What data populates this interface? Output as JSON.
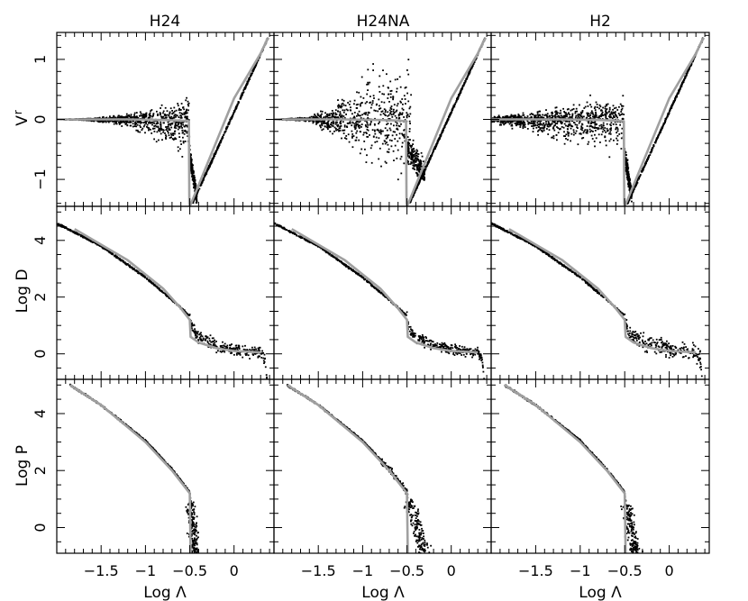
{
  "figure": {
    "columns": [
      "H24",
      "H24NA",
      "H2"
    ],
    "xlabel": "Log Λ",
    "x_ticks": [
      -1.5,
      -1,
      -0.5,
      0
    ],
    "x_tick_labels": [
      "−1.5",
      "−1",
      "−0.5",
      "0"
    ],
    "rows": [
      {
        "ylabel": "V",
        "ylabel_sub": "r",
        "y_ticks": [
          -1,
          0,
          1
        ],
        "y_tick_labels": [
          "−1",
          "0",
          "1"
        ]
      },
      {
        "ylabel": "Log D",
        "y_ticks": [
          0,
          2,
          4
        ],
        "y_tick_labels": [
          "0",
          "2",
          "4"
        ]
      },
      {
        "ylabel": "Log P",
        "y_ticks": [
          0,
          2,
          4
        ],
        "y_tick_labels": [
          "0",
          "2",
          "4"
        ]
      }
    ],
    "colors": {
      "points": "#000000",
      "model_line": "#a0a0a0",
      "frame": "#000000"
    }
  },
  "chart_data": [
    {
      "type": "scatter",
      "row": 0,
      "panel": "H24",
      "xlim": [
        -2.0,
        0.45
      ],
      "ylim": [
        -1.45,
        1.45
      ],
      "model_curve": {
        "x": [
          -2.0,
          -1.2,
          -0.8,
          -0.6,
          -0.51,
          -0.505,
          -0.5,
          -0.47,
          0.0,
          0.3,
          0.37,
          0.39
        ],
        "y": [
          0.0,
          0.0,
          -0.01,
          -0.02,
          -0.03,
          -1.4,
          -1.45,
          -1.35,
          0.35,
          1.1,
          1.32,
          1.36
        ]
      },
      "branches": [
        {
          "x_from": -2.0,
          "x_to": -0.5,
          "y_center": 0.0,
          "scatter": [
            0.0,
            0.02,
            0.1,
            0.3,
            0.55
          ],
          "skew": "down"
        },
        {
          "x_from": -0.5,
          "x_to": -0.42,
          "y_from": -0.6,
          "y_to": -1.3,
          "scatter": 0.15
        },
        {
          "x_from": -0.47,
          "x_to": 0.38,
          "y_from": -1.4,
          "y_to": 1.35,
          "scatter": 0.01
        }
      ]
    },
    {
      "type": "scatter",
      "row": 0,
      "panel": "H24NA",
      "xlim": [
        -2.0,
        0.45
      ],
      "ylim": [
        -1.45,
        1.45
      ],
      "model_curve": {
        "x": [
          -2.0,
          -1.2,
          -0.8,
          -0.6,
          -0.51,
          -0.505,
          -0.5,
          -0.47,
          0.0,
          0.3,
          0.37,
          0.39
        ],
        "y": [
          0.0,
          0.0,
          -0.01,
          -0.02,
          -0.03,
          -1.4,
          -1.45,
          -1.35,
          0.35,
          1.1,
          1.32,
          1.36
        ]
      },
      "branches": [
        {
          "x_from": -2.0,
          "x_to": -0.45,
          "y_center": 0.0,
          "scatter": [
            0.0,
            0.03,
            0.3,
            0.7,
            0.9
          ],
          "skew": "none"
        },
        {
          "x_from": -0.5,
          "x_to": -0.3,
          "y_from": -0.5,
          "y_to": -0.9,
          "scatter": 0.2
        },
        {
          "x_from": -0.47,
          "x_to": 0.38,
          "y_from": -1.4,
          "y_to": 1.35,
          "scatter": 0.01
        }
      ]
    },
    {
      "type": "scatter",
      "row": 0,
      "panel": "H2",
      "xlim": [
        -2.0,
        0.45
      ],
      "ylim": [
        -1.45,
        1.45
      ],
      "model_curve": {
        "x": [
          -2.0,
          -1.2,
          -0.8,
          -0.6,
          -0.51,
          -0.505,
          -0.5,
          -0.47,
          0.0,
          0.3,
          0.37,
          0.39
        ],
        "y": [
          0.0,
          0.0,
          -0.01,
          -0.02,
          -0.03,
          -1.4,
          -1.45,
          -1.35,
          0.35,
          1.1,
          1.32,
          1.36
        ]
      },
      "branches": [
        {
          "x_from": -2.0,
          "x_to": -0.5,
          "y_center": 0.0,
          "scatter": [
            0.05,
            0.15,
            0.3,
            0.45,
            0.6
          ],
          "skew": "down"
        },
        {
          "x_from": -0.5,
          "x_to": -0.42,
          "y_from": -0.6,
          "y_to": -1.3,
          "scatter": 0.15
        },
        {
          "x_from": -0.47,
          "x_to": 0.38,
          "y_from": -1.4,
          "y_to": 1.35,
          "scatter": 0.01
        }
      ]
    },
    {
      "type": "scatter",
      "row": 1,
      "panel": "H24",
      "xlim": [
        -2.0,
        0.45
      ],
      "ylim": [
        -0.9,
        5.2
      ],
      "model_curve": {
        "x": [
          -1.8,
          -1.2,
          -0.8,
          -0.6,
          -0.5,
          -0.49,
          -0.4,
          -0.2,
          0.0,
          0.3
        ],
        "y": [
          4.4,
          3.3,
          2.3,
          1.6,
          1.2,
          0.6,
          0.4,
          0.2,
          0.1,
          0.05
        ]
      },
      "sim_curve": {
        "x": [
          -2.0,
          -1.5,
          -1.0,
          -0.7,
          -0.5,
          -0.49,
          -0.4,
          -0.2,
          0.0,
          0.3,
          0.35,
          0.37
        ],
        "y": [
          4.6,
          3.8,
          2.7,
          1.9,
          1.35,
          0.95,
          0.6,
          0.3,
          0.15,
          0.05,
          -0.2,
          -0.9
        ]
      },
      "sim_scatter": {
        "x_from": -0.5,
        "x_to": 0.35,
        "amount": 0.22
      }
    },
    {
      "type": "scatter",
      "row": 1,
      "panel": "H24NA",
      "xlim": [
        -2.0,
        0.45
      ],
      "ylim": [
        -0.9,
        5.2
      ],
      "model_curve": {
        "x": [
          -1.8,
          -1.2,
          -0.8,
          -0.6,
          -0.5,
          -0.49,
          -0.4,
          -0.2,
          0.0,
          0.3
        ],
        "y": [
          4.4,
          3.3,
          2.3,
          1.6,
          1.2,
          0.6,
          0.4,
          0.2,
          0.1,
          0.05
        ]
      },
      "sim_curve": {
        "x": [
          -2.0,
          -1.5,
          -1.0,
          -0.7,
          -0.5,
          -0.49,
          -0.4,
          -0.2,
          0.0,
          0.3,
          0.35,
          0.37
        ],
        "y": [
          4.6,
          3.8,
          2.7,
          1.9,
          1.35,
          0.95,
          0.6,
          0.3,
          0.15,
          0.05,
          -0.2,
          -0.9
        ]
      },
      "sim_scatter": {
        "x_from": -0.5,
        "x_to": 0.35,
        "amount": 0.18
      }
    },
    {
      "type": "scatter",
      "row": 1,
      "panel": "H2",
      "xlim": [
        -2.0,
        0.45
      ],
      "ylim": [
        -0.9,
        5.2
      ],
      "model_curve": {
        "x": [
          -1.8,
          -1.2,
          -0.8,
          -0.6,
          -0.5,
          -0.49,
          -0.4,
          -0.2,
          0.0,
          0.3
        ],
        "y": [
          4.4,
          3.3,
          2.3,
          1.6,
          1.2,
          0.6,
          0.4,
          0.2,
          0.1,
          0.05
        ]
      },
      "sim_curve": {
        "x": [
          -2.0,
          -1.5,
          -1.0,
          -0.7,
          -0.5,
          -0.49,
          -0.4,
          -0.2,
          0.0,
          0.3,
          0.35,
          0.37
        ],
        "y": [
          4.6,
          3.8,
          2.7,
          1.9,
          1.35,
          0.95,
          0.6,
          0.3,
          0.15,
          0.05,
          -0.2,
          -0.9
        ]
      },
      "sim_scatter": {
        "x_from": -0.5,
        "x_to": 0.35,
        "amount": 0.3
      }
    },
    {
      "type": "scatter",
      "row": 2,
      "panel": "H24",
      "xlim": [
        -2.0,
        0.45
      ],
      "ylim": [
        -0.9,
        5.2
      ],
      "model_curve": {
        "x": [
          -1.85,
          -1.5,
          -1.0,
          -0.7,
          -0.5,
          -0.49
        ],
        "y": [
          5.0,
          4.3,
          3.0,
          2.0,
          1.2,
          -0.9
        ]
      },
      "sim_curve": {
        "x": [
          -1.85,
          -1.5,
          -1.0,
          -0.7,
          -0.5,
          -0.48
        ],
        "y": [
          5.0,
          4.3,
          3.05,
          2.05,
          1.25,
          0.7
        ]
      },
      "tail": {
        "x_from": -0.49,
        "x_to": -0.43,
        "y_from": 0.9,
        "y_to": -0.9,
        "scatter": 0.025
      }
    },
    {
      "type": "scatter",
      "row": 2,
      "panel": "H24NA",
      "xlim": [
        -2.0,
        0.45
      ],
      "ylim": [
        -0.9,
        5.2
      ],
      "model_curve": {
        "x": [
          -1.85,
          -1.5,
          -1.0,
          -0.7,
          -0.5,
          -0.49
        ],
        "y": [
          5.0,
          4.3,
          3.0,
          2.0,
          1.2,
          -0.9
        ]
      },
      "sim_curve": {
        "x": [
          -1.85,
          -1.5,
          -1.0,
          -0.7,
          -0.5,
          -0.48
        ],
        "y": [
          5.0,
          4.3,
          3.05,
          2.05,
          1.25,
          0.7
        ]
      },
      "band": {
        "x_from": -0.8,
        "x_to": -0.45,
        "width": 0.12
      },
      "tail": {
        "x_from": -0.48,
        "x_to": -0.3,
        "y_from": 1.0,
        "y_to": -0.9,
        "scatter": 0.035
      }
    },
    {
      "type": "scatter",
      "row": 2,
      "panel": "H2",
      "xlim": [
        -2.0,
        0.45
      ],
      "ylim": [
        -0.9,
        5.2
      ],
      "model_curve": {
        "x": [
          -1.85,
          -1.5,
          -1.0,
          -0.7,
          -0.5,
          -0.49
        ],
        "y": [
          5.0,
          4.3,
          3.0,
          2.0,
          1.2,
          -0.9
        ]
      },
      "sim_curve": {
        "x": [
          -1.85,
          -1.5,
          -1.0,
          -0.7,
          -0.5,
          -0.48
        ],
        "y": [
          5.0,
          4.3,
          3.05,
          2.05,
          1.25,
          0.7
        ]
      },
      "tail": {
        "x_from": -0.48,
        "x_to": -0.38,
        "y_from": 0.8,
        "y_to": -0.9,
        "scatter": 0.03
      }
    }
  ]
}
